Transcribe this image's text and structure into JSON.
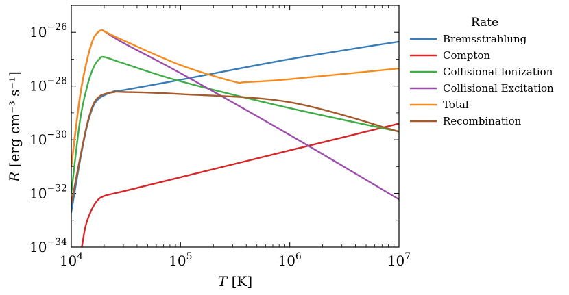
{
  "chart_data": {
    "type": "line",
    "xscale": "log",
    "yscale": "log",
    "xlim": [
      10000,
      10000000
    ],
    "ylim": [
      1e-34,
      1e-25
    ],
    "xlabel": {
      "var": "T",
      "unit": "[K]"
    },
    "ylabel": {
      "var": "R",
      "unit": "[erg cm⁻³ s⁻¹]"
    },
    "x_ticks": [
      {
        "value": 10000,
        "base": "10",
        "exp": "4"
      },
      {
        "value": 100000,
        "base": "10",
        "exp": "5"
      },
      {
        "value": 1000000,
        "base": "10",
        "exp": "6"
      },
      {
        "value": 10000000,
        "base": "10",
        "exp": "7"
      }
    ],
    "y_ticks": [
      {
        "value": 1e-34,
        "base": "10",
        "exp": "−34"
      },
      {
        "value": 1e-32,
        "base": "10",
        "exp": "−32"
      },
      {
        "value": 1e-30,
        "base": "10",
        "exp": "−30"
      },
      {
        "value": 1e-28,
        "base": "10",
        "exp": "−28"
      },
      {
        "value": 1e-26,
        "base": "10",
        "exp": "−26"
      }
    ],
    "legend_title": "Rate",
    "legend_position": "outside-right",
    "series": [
      {
        "name": "Bremsstrahlung",
        "color": "#3a7cb8",
        "x": [
          10000,
          12000,
          14000,
          16000,
          18000,
          20000,
          25000,
          30000,
          100000,
          1000000,
          10000000
        ],
        "y": [
          2e-33,
          1.6e-31,
          3.5e-30,
          1.9e-29,
          3.5e-29,
          4.5e-29,
          6.5e-29,
          7e-29,
          1.7e-28,
          1e-27,
          4.5e-27
        ]
      },
      {
        "name": "Compton",
        "color": "#d62728",
        "x": [
          12500,
          13500,
          15000,
          17000,
          20000,
          30000,
          100000,
          1000000,
          10000000
        ],
        "y": [
          1e-34,
          6e-34,
          2e-33,
          5e-33,
          8e-33,
          1.2e-32,
          4e-32,
          4e-31,
          4e-30
        ]
      },
      {
        "name": "Collisional Ionization",
        "color": "#3fad46",
        "x": [
          10000,
          12000,
          14000,
          16000,
          18000,
          20000,
          30000,
          100000,
          1000000,
          10000000
        ],
        "y": [
          1e-32,
          5e-30,
          1e-28,
          5e-28,
          1e-27,
          1.2e-27,
          7e-28,
          1.5e-28,
          1.5e-29,
          2e-30
        ]
      },
      {
        "name": "Collisional Excitation",
        "color": "#9b4eaa",
        "x": [
          10000,
          12000,
          14000,
          16000,
          18000,
          19000,
          20000,
          30000,
          100000,
          1000000,
          10000000
        ],
        "y": [
          1e-31,
          4e-29,
          1e-27,
          6e-27,
          1.1e-26,
          1.15e-26,
          1.1e-26,
          4e-27,
          3e-28,
          1.5e-30,
          6e-33
        ]
      },
      {
        "name": "Total",
        "color": "#f58b1c",
        "x": [
          10000,
          12000,
          14000,
          16000,
          18000,
          19000,
          20000,
          30000,
          100000,
          300000,
          400000,
          1000000,
          10000000
        ],
        "y": [
          1e-31,
          4e-29,
          1e-27,
          6e-27,
          1.1e-26,
          1.15e-26,
          1.1e-26,
          5e-27,
          6e-28,
          1.5e-28,
          1.4e-28,
          1.8e-28,
          4.5e-28
        ]
      },
      {
        "name": "Recombination",
        "color": "#a6592b",
        "x": [
          10000,
          12000,
          14000,
          16000,
          18000,
          20000,
          25000,
          30000,
          100000,
          1000000,
          10000000
        ],
        "y": [
          4e-33,
          2e-31,
          4e-30,
          2.2e-29,
          4e-29,
          5e-29,
          6e-29,
          6e-29,
          5e-29,
          2.5e-29,
          2e-30
        ]
      }
    ]
  }
}
